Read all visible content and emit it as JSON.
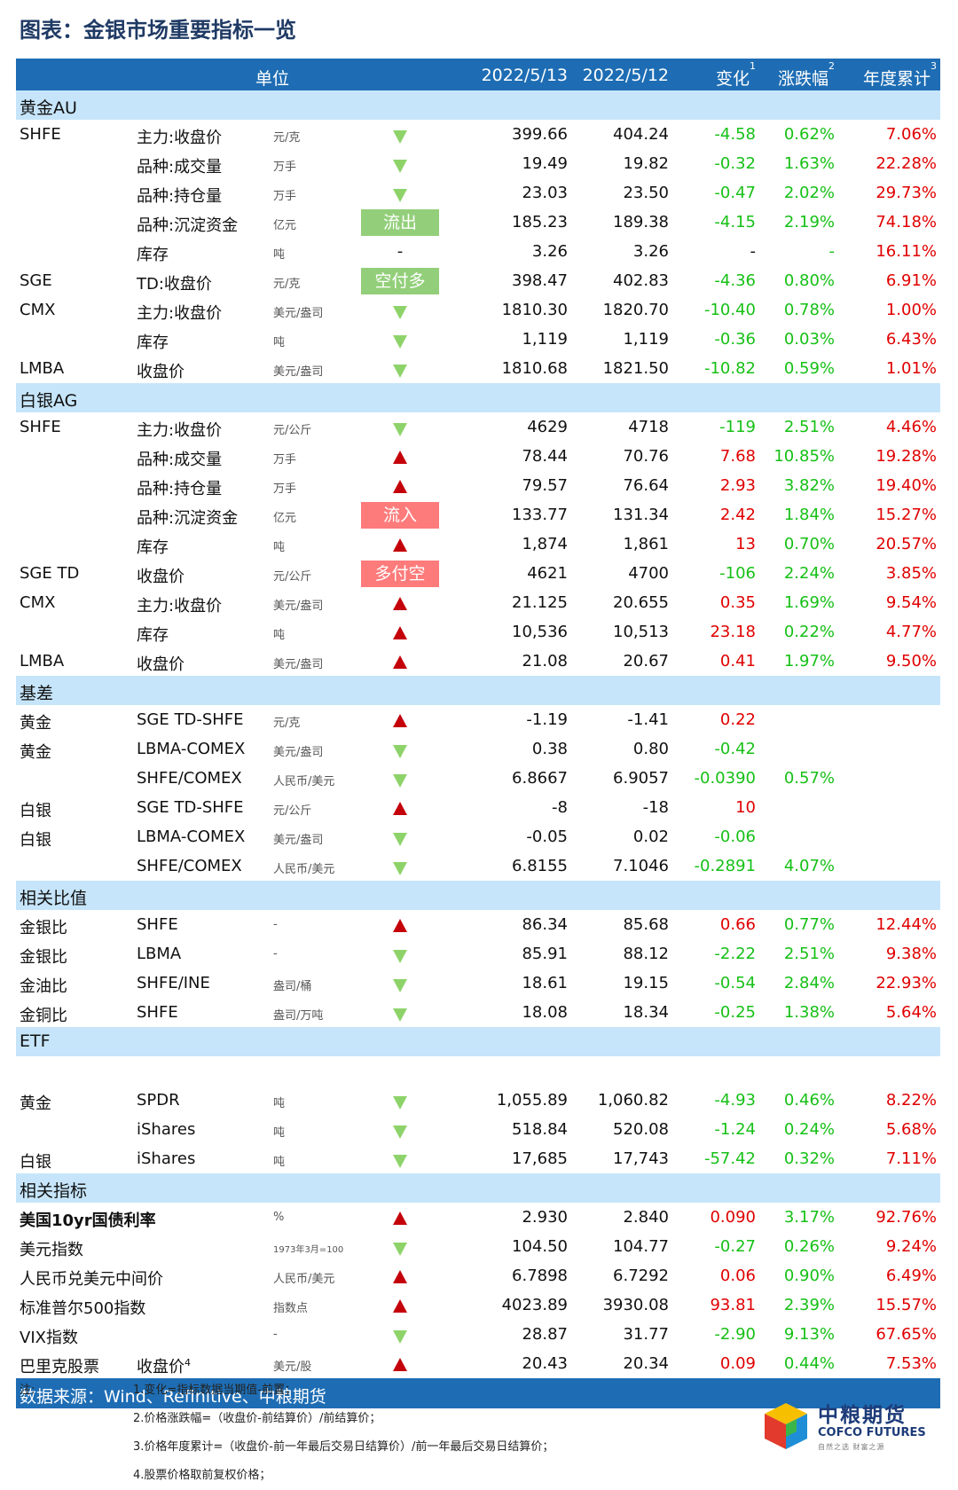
{
  "title": "图表：金银市场重要指标一览",
  "header": {
    "unit": "单位",
    "date1": "2022/5/13",
    "date2": "2022/5/12",
    "chg": "变化",
    "chg_sup": "1",
    "pct": "涨跌幅",
    "pct_sup": "2",
    "ytd": "年度累计",
    "ytd_sup": "3"
  },
  "sections": [
    {
      "name": "黄金AU",
      "rows": [
        {
          "g": "SHFE",
          "item": "主力:收盘价",
          "unit": "元/克",
          "ind": "down",
          "d1": "399.66",
          "d2": "404.24",
          "chg": "-4.58",
          "pct": "0.62%",
          "ytd": "7.06%"
        },
        {
          "g": "",
          "item": "品种:成交量",
          "unit": "万手",
          "ind": "down",
          "d1": "19.49",
          "d2": "19.82",
          "chg": "-0.32",
          "pct": "1.63%",
          "ytd": "22.28%"
        },
        {
          "g": "",
          "item": "品种:持仓量",
          "unit": "万手",
          "ind": "down",
          "d1": "23.03",
          "d2": "23.50",
          "chg": "-0.47",
          "pct": "2.02%",
          "ytd": "29.73%"
        },
        {
          "g": "",
          "item": "品种:沉淀资金",
          "unit": "亿元",
          "ind": "label-green",
          "label": "流出",
          "d1": "185.23",
          "d2": "189.38",
          "chg": "-4.15",
          "pct": "2.19%",
          "ytd": "74.18%"
        },
        {
          "g": "",
          "item": "库存",
          "unit": "吨",
          "ind": "dash",
          "label": "-",
          "d1": "3.26",
          "d2": "3.26",
          "chg": "-",
          "pct": "-",
          "ytd": "16.11%"
        },
        {
          "g": "SGE",
          "item": "TD:收盘价",
          "unit": "元/克",
          "ind": "label-green",
          "label": "空付多",
          "d1": "398.47",
          "d2": "402.83",
          "chg": "-4.36",
          "pct": "0.80%",
          "ytd": "6.91%"
        },
        {
          "g": "CMX",
          "item": "主力:收盘价",
          "unit": "美元/盎司",
          "ind": "down",
          "d1": "1810.30",
          "d2": "1820.70",
          "chg": "-10.40",
          "pct": "0.78%",
          "ytd": "1.00%"
        },
        {
          "g": "",
          "item": "库存",
          "unit": "吨",
          "ind": "down",
          "d1": "1,119",
          "d2": "1,119",
          "chg": "-0.36",
          "pct": "0.03%",
          "ytd": "6.43%"
        },
        {
          "g": "LMBA",
          "item": "收盘价",
          "unit": "美元/盎司",
          "ind": "down",
          "d1": "1810.68",
          "d2": "1821.50",
          "chg": "-10.82",
          "pct": "0.59%",
          "ytd": "1.01%"
        }
      ]
    },
    {
      "name": "白银AG",
      "rows": [
        {
          "g": "SHFE",
          "item": "主力:收盘价",
          "unit": "元/公斤",
          "ind": "down",
          "d1": "4629",
          "d2": "4718",
          "chg": "-119",
          "pct": "2.51%",
          "ytd": "4.46%"
        },
        {
          "g": "",
          "item": "品种:成交量",
          "unit": "万手",
          "ind": "up",
          "d1": "78.44",
          "d2": "70.76",
          "chg": "7.68",
          "pct": "10.85%",
          "ytd": "19.28%"
        },
        {
          "g": "",
          "item": "品种:持仓量",
          "unit": "万手",
          "ind": "up",
          "d1": "79.57",
          "d2": "76.64",
          "chg": "2.93",
          "pct": "3.82%",
          "ytd": "19.40%"
        },
        {
          "g": "",
          "item": "品种:沉淀资金",
          "unit": "亿元",
          "ind": "label-red",
          "label": "流入",
          "d1": "133.77",
          "d2": "131.34",
          "chg": "2.42",
          "pct": "1.84%",
          "ytd": "15.27%"
        },
        {
          "g": "",
          "item": "库存",
          "unit": "吨",
          "ind": "up",
          "d1": "1,874",
          "d2": "1,861",
          "chg": "13",
          "pct": "0.70%",
          "ytd": "20.57%"
        },
        {
          "g": "SGE TD",
          "item": "收盘价",
          "unit": "元/公斤",
          "ind": "label-red",
          "label": "多付空",
          "d1": "4621",
          "d2": "4700",
          "chg": "-106",
          "pct": "2.24%",
          "ytd": "3.85%"
        },
        {
          "g": "CMX",
          "item": "主力:收盘价",
          "unit": "美元/盎司",
          "ind": "up",
          "d1": "21.125",
          "d2": "20.655",
          "chg": "0.35",
          "pct": "1.69%",
          "ytd": "9.54%"
        },
        {
          "g": "",
          "item": "库存",
          "unit": "吨",
          "ind": "up",
          "d1": "10,536",
          "d2": "10,513",
          "chg": "23.18",
          "pct": "0.22%",
          "ytd": "4.77%"
        },
        {
          "g": "LMBA",
          "item": "收盘价",
          "unit": "美元/盎司",
          "ind": "up",
          "d1": "21.08",
          "d2": "20.67",
          "chg": "0.41",
          "pct": "1.97%",
          "ytd": "9.50%"
        }
      ]
    },
    {
      "name": "基差",
      "rows": [
        {
          "g": "黄金",
          "item": "SGE TD-SHFE",
          "unit": "元/克",
          "ind": "up",
          "d1": "-1.19",
          "d2": "-1.41",
          "chg": "0.22",
          "pct": "",
          "ytd": ""
        },
        {
          "g": "黄金",
          "item": "LBMA-COMEX",
          "unit": "美元/盎司",
          "ind": "down",
          "d1": "0.38",
          "d2": "0.80",
          "chg": "-0.42",
          "pct": "",
          "ytd": ""
        },
        {
          "g": "",
          "item": "SHFE/COMEX",
          "unit": "人民币/美元",
          "ind": "down",
          "d1": "6.8667",
          "d2": "6.9057",
          "chg": "-0.0390",
          "pct": "0.57%",
          "ytd": ""
        },
        {
          "g": "白银",
          "item": "SGE TD-SHFE",
          "unit": "元/公斤",
          "ind": "up",
          "d1": "-8",
          "d2": "-18",
          "chg": "10",
          "pct": "",
          "ytd": ""
        },
        {
          "g": "白银",
          "item": "LBMA-COMEX",
          "unit": "美元/盎司",
          "ind": "down",
          "d1": "-0.05",
          "d2": "0.02",
          "chg": "-0.06",
          "pct": "",
          "ytd": ""
        },
        {
          "g": "",
          "item": "SHFE/COMEX",
          "unit": "人民币/美元",
          "ind": "down",
          "d1": "6.8155",
          "d2": "7.1046",
          "chg": "-0.2891",
          "pct": "4.07%",
          "ytd": ""
        }
      ]
    },
    {
      "name": "相关比值",
      "rows": [
        {
          "g": "金银比",
          "item": "SHFE",
          "unit": "-",
          "ind": "up",
          "d1": "86.34",
          "d2": "85.68",
          "chg": "0.66",
          "pct": "0.77%",
          "ytd": "12.44%"
        },
        {
          "g": "金银比",
          "item": "LBMA",
          "unit": "-",
          "ind": "down",
          "d1": "85.91",
          "d2": "88.12",
          "chg": "-2.22",
          "pct": "2.51%",
          "ytd": "9.38%"
        },
        {
          "g": "金油比",
          "item": "SHFE/INE",
          "unit": "盎司/桶",
          "ind": "down",
          "d1": "18.61",
          "d2": "19.15",
          "chg": "-0.54",
          "pct": "2.84%",
          "ytd": "22.93%"
        },
        {
          "g": "金铜比",
          "item": "SHFE",
          "unit": "盎司/万吨",
          "ind": "down",
          "d1": "18.08",
          "d2": "18.34",
          "chg": "-0.25",
          "pct": "1.38%",
          "ytd": "5.64%"
        }
      ]
    },
    {
      "name": "ETF",
      "rows": [
        {
          "g": "",
          "item": "",
          "unit": "",
          "ind": "none",
          "d1": "",
          "d2": "",
          "chg": "",
          "pct": "",
          "ytd": ""
        },
        {
          "g": "黄金",
          "item": "SPDR",
          "unit": "吨",
          "ind": "down",
          "d1": "1,055.89",
          "d2": "1,060.82",
          "chg": "-4.93",
          "pct": "0.46%",
          "ytd": "8.22%"
        },
        {
          "g": "",
          "item": "iShares",
          "unit": "吨",
          "ind": "down",
          "d1": "518.84",
          "d2": "520.08",
          "chg": "-1.24",
          "pct": "0.24%",
          "ytd": "5.68%"
        },
        {
          "g": "白银",
          "item": "iShares",
          "unit": "吨",
          "ind": "down",
          "d1": "17,685",
          "d2": "17,743",
          "chg": "-57.42",
          "pct": "0.32%",
          "ytd": "7.11%"
        }
      ]
    },
    {
      "name": "相关指标",
      "rows": [
        {
          "g": "美国10yr国债利率",
          "bold": true,
          "item": "",
          "unit": "%",
          "ind": "up",
          "d1": "2.930",
          "d2": "2.840",
          "chg": "0.090",
          "pct": "3.17%",
          "ytd": "92.76%"
        },
        {
          "g": "美元指数",
          "item": "",
          "unit": "1973年3月=100",
          "tiny": true,
          "ind": "down",
          "d1": "104.50",
          "d2": "104.77",
          "chg": "-0.27",
          "pct": "0.26%",
          "ytd": "9.24%"
        },
        {
          "g": "人民币兑美元中间价",
          "item": "",
          "unit": "人民币/美元",
          "ind": "up",
          "d1": "6.7898",
          "d2": "6.7292",
          "chg": "0.06",
          "pct": "0.90%",
          "ytd": "6.49%"
        },
        {
          "g": "标准普尔500指数",
          "item": "",
          "unit": "指数点",
          "ind": "up",
          "d1": "4023.89",
          "d2": "3930.08",
          "chg": "93.81",
          "pct": "2.39%",
          "ytd": "15.57%"
        },
        {
          "g": "VIX指数",
          "item": "",
          "unit": "-",
          "ind": "down",
          "d1": "28.87",
          "d2": "31.77",
          "chg": "-2.90",
          "pct": "9.13%",
          "ytd": "67.65%"
        },
        {
          "g": "巴里克股票",
          "item": "收盘价",
          "item_sup": "4",
          "unit": "美元/股",
          "ind": "up",
          "d1": "20.43",
          "d2": "20.34",
          "chg": "0.09",
          "pct": "0.44%",
          "ytd": "7.53%"
        }
      ]
    }
  ],
  "source": "数据来源：Wind、Refinitive、中粮期货",
  "notes": {
    "label": "注:",
    "items": [
      "1.变化=指标数据当期值-前置；",
      "2.价格涨跌幅=（收盘价-前结算价）/前结算价；",
      "3.价格年度累计=（收盘价-前一年最后交易日结算价）/前一年最后交易日结算价；",
      "4.股票价格取前复权价格；"
    ]
  },
  "logo": {
    "cn": "中粮期货",
    "en": "COFCO FUTURES",
    "slogan": "自然之选 财富之源"
  },
  "colors": {
    "header": "#1e6db4",
    "section": "#c6e5fa",
    "down": "#16c016",
    "up": "#e00000",
    "label_green": "#93cf7a",
    "label_red": "#fd7b7b"
  }
}
